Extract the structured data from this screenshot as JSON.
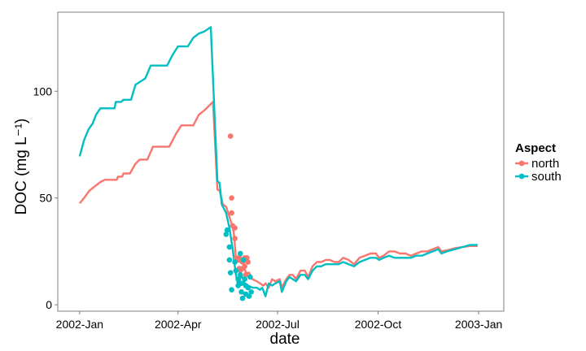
{
  "chart_data": {
    "type": "line",
    "xlabel": "date",
    "ylabel": "DOC (mg L⁻¹)",
    "x_ticks": [
      "2002-Jan",
      "2002-Apr",
      "2002-Jul",
      "2002-Oct",
      "2003-Jan"
    ],
    "x_tick_dates": [
      "2002-01-01",
      "2002-04-01",
      "2002-07-01",
      "2002-10-01",
      "2003-01-01"
    ],
    "xlim": [
      "2001-12-12",
      "2003-01-24"
    ],
    "y_ticks": [
      "0",
      "50",
      "100"
    ],
    "ylim": [
      -3,
      137
    ],
    "grid": false,
    "legend": {
      "title": "Aspect",
      "position": "right"
    },
    "series": [
      {
        "name": "north",
        "color": "#F8766D",
        "line": [
          [
            "2002-01-01",
            47.5
          ],
          [
            "2002-01-05",
            50
          ],
          [
            "2002-01-10",
            53.5
          ],
          [
            "2002-01-15",
            55.5
          ],
          [
            "2002-01-20",
            57.5
          ],
          [
            "2002-01-24",
            58.5
          ],
          [
            "2002-02-04",
            58.5
          ],
          [
            "2002-02-05",
            60
          ],
          [
            "2002-02-09",
            60
          ],
          [
            "2002-02-10",
            61.5
          ],
          [
            "2002-02-16",
            61.5
          ],
          [
            "2002-02-21",
            66
          ],
          [
            "2002-02-25",
            68
          ],
          [
            "2002-03-04",
            68
          ],
          [
            "2002-03-09",
            74
          ],
          [
            "2002-03-24",
            74
          ],
          [
            "2002-03-30",
            80
          ],
          [
            "2002-04-04",
            84
          ],
          [
            "2002-04-15",
            84
          ],
          [
            "2002-04-20",
            89
          ],
          [
            "2002-04-25",
            91
          ],
          [
            "2002-05-03",
            95
          ],
          [
            "2002-05-07",
            54
          ],
          [
            "2002-05-09",
            53.5
          ],
          [
            "2002-05-12",
            47
          ],
          [
            "2002-05-15",
            46
          ],
          [
            "2002-05-20",
            38
          ],
          [
            "2002-05-22",
            34
          ],
          [
            "2002-05-24",
            22
          ],
          [
            "2002-05-27",
            20
          ],
          [
            "2002-05-30",
            21
          ],
          [
            "2002-06-02",
            15
          ],
          [
            "2002-06-05",
            15
          ],
          [
            "2002-06-08",
            12
          ],
          [
            "2002-06-12",
            11
          ],
          [
            "2002-06-15",
            10
          ],
          [
            "2002-06-18",
            9
          ],
          [
            "2002-06-20",
            10
          ],
          [
            "2002-06-23",
            8
          ],
          [
            "2002-06-26",
            12
          ],
          [
            "2002-06-29",
            11
          ],
          [
            "2002-07-03",
            12
          ],
          [
            "2002-07-05",
            8
          ],
          [
            "2002-07-09",
            12
          ],
          [
            "2002-07-12",
            14
          ],
          [
            "2002-07-15",
            14
          ],
          [
            "2002-07-18",
            12
          ],
          [
            "2002-07-22",
            16
          ],
          [
            "2002-07-26",
            16
          ],
          [
            "2002-07-29",
            13
          ],
          [
            "2002-08-02",
            18
          ],
          [
            "2002-08-06",
            20
          ],
          [
            "2002-08-10",
            20
          ],
          [
            "2002-08-14",
            21
          ],
          [
            "2002-08-18",
            21
          ],
          [
            "2002-08-22",
            20
          ],
          [
            "2002-08-26",
            20
          ],
          [
            "2002-08-30",
            22
          ],
          [
            "2002-09-04",
            21
          ],
          [
            "2002-09-09",
            19
          ],
          [
            "2002-09-14",
            22
          ],
          [
            "2002-09-19",
            23
          ],
          [
            "2002-09-24",
            24
          ],
          [
            "2002-09-29",
            24
          ],
          [
            "2002-10-02",
            22
          ],
          [
            "2002-10-06",
            23
          ],
          [
            "2002-10-11",
            25
          ],
          [
            "2002-10-16",
            25
          ],
          [
            "2002-10-21",
            24
          ],
          [
            "2002-10-26",
            24
          ],
          [
            "2002-10-31",
            23
          ],
          [
            "2002-11-05",
            24
          ],
          [
            "2002-11-10",
            25
          ],
          [
            "2002-11-15",
            25
          ],
          [
            "2002-11-20",
            26
          ],
          [
            "2002-11-25",
            27
          ],
          [
            "2002-11-28",
            25
          ],
          [
            "2002-12-03",
            25.5
          ],
          [
            "2002-12-10",
            26.5
          ],
          [
            "2002-12-17",
            27
          ],
          [
            "2002-12-24",
            27.5
          ],
          [
            "2002-12-31",
            27.5
          ]
        ],
        "points": [
          [
            "2002-05-19",
            79
          ],
          [
            "2002-05-20",
            50
          ],
          [
            "2002-05-20",
            43
          ],
          [
            "2002-05-21",
            37
          ],
          [
            "2002-05-23",
            36
          ],
          [
            "2002-05-23",
            31
          ],
          [
            "2002-05-24",
            22
          ],
          [
            "2002-05-25",
            21
          ],
          [
            "2002-05-27",
            22
          ],
          [
            "2002-05-27",
            17
          ],
          [
            "2002-05-28",
            16
          ],
          [
            "2002-05-30",
            20
          ],
          [
            "2002-05-30",
            17
          ],
          [
            "2002-06-01",
            22
          ],
          [
            "2002-06-01",
            18
          ],
          [
            "2002-06-02",
            14
          ],
          [
            "2002-06-03",
            22
          ],
          [
            "2002-06-04",
            20
          ]
        ]
      },
      {
        "name": "south",
        "color": "#00BFC4",
        "line": [
          [
            "2002-01-01",
            69.5
          ],
          [
            "2002-01-05",
            77
          ],
          [
            "2002-01-09",
            82
          ],
          [
            "2002-01-13",
            85
          ],
          [
            "2002-01-16",
            89
          ],
          [
            "2002-01-20",
            92
          ],
          [
            "2002-02-02",
            92
          ],
          [
            "2002-02-03",
            95
          ],
          [
            "2002-02-08",
            95
          ],
          [
            "2002-02-10",
            96
          ],
          [
            "2002-02-17",
            96
          ],
          [
            "2002-02-21",
            103
          ],
          [
            "2002-02-24",
            104
          ],
          [
            "2002-03-02",
            106
          ],
          [
            "2002-03-07",
            112
          ],
          [
            "2002-03-22",
            112
          ],
          [
            "2002-03-27",
            117
          ],
          [
            "2002-04-01",
            121
          ],
          [
            "2002-04-10",
            121
          ],
          [
            "2002-04-15",
            125
          ],
          [
            "2002-04-20",
            127
          ],
          [
            "2002-04-25",
            128
          ],
          [
            "2002-05-01",
            130
          ],
          [
            "2002-05-07",
            58
          ],
          [
            "2002-05-09",
            57
          ],
          [
            "2002-05-11",
            47
          ],
          [
            "2002-05-15",
            43
          ],
          [
            "2002-05-18",
            36
          ],
          [
            "2002-05-21",
            26
          ],
          [
            "2002-05-24",
            14
          ],
          [
            "2002-05-26",
            9
          ],
          [
            "2002-05-29",
            14
          ],
          [
            "2002-06-01",
            10
          ],
          [
            "2002-06-04",
            9
          ],
          [
            "2002-06-08",
            8
          ],
          [
            "2002-06-12",
            8
          ],
          [
            "2002-06-15",
            7
          ],
          [
            "2002-06-17",
            8
          ],
          [
            "2002-06-20",
            4
          ],
          [
            "2002-06-23",
            10
          ],
          [
            "2002-06-26",
            9
          ],
          [
            "2002-06-29",
            10
          ],
          [
            "2002-07-03",
            11
          ],
          [
            "2002-07-05",
            6
          ],
          [
            "2002-07-09",
            11
          ],
          [
            "2002-07-12",
            13
          ],
          [
            "2002-07-15",
            12
          ],
          [
            "2002-07-18",
            11
          ],
          [
            "2002-07-22",
            14
          ],
          [
            "2002-07-26",
            14
          ],
          [
            "2002-07-29",
            12
          ],
          [
            "2002-08-02",
            16
          ],
          [
            "2002-08-06",
            18
          ],
          [
            "2002-08-10",
            18
          ],
          [
            "2002-08-14",
            19
          ],
          [
            "2002-08-18",
            19
          ],
          [
            "2002-08-22",
            19
          ],
          [
            "2002-08-26",
            19
          ],
          [
            "2002-08-30",
            20
          ],
          [
            "2002-09-04",
            19
          ],
          [
            "2002-09-09",
            18
          ],
          [
            "2002-09-14",
            20
          ],
          [
            "2002-09-19",
            21
          ],
          [
            "2002-09-24",
            22
          ],
          [
            "2002-09-29",
            22
          ],
          [
            "2002-10-02",
            21
          ],
          [
            "2002-10-06",
            22
          ],
          [
            "2002-10-11",
            23
          ],
          [
            "2002-10-16",
            22
          ],
          [
            "2002-10-21",
            22
          ],
          [
            "2002-10-26",
            22
          ],
          [
            "2002-10-31",
            22
          ],
          [
            "2002-11-05",
            23
          ],
          [
            "2002-11-10",
            23
          ],
          [
            "2002-11-15",
            24
          ],
          [
            "2002-11-20",
            25
          ],
          [
            "2002-11-25",
            26
          ],
          [
            "2002-11-28",
            24
          ],
          [
            "2002-12-03",
            25
          ],
          [
            "2002-12-10",
            26
          ],
          [
            "2002-12-17",
            27
          ],
          [
            "2002-12-24",
            28
          ],
          [
            "2002-12-31",
            28
          ]
        ],
        "points": [
          [
            "2002-05-15",
            33
          ],
          [
            "2002-05-16",
            35
          ],
          [
            "2002-05-18",
            27
          ],
          [
            "2002-05-18",
            21
          ],
          [
            "2002-05-19",
            15
          ],
          [
            "2002-05-20",
            7
          ],
          [
            "2002-05-23",
            20
          ],
          [
            "2002-05-24",
            16
          ],
          [
            "2002-05-26",
            12
          ],
          [
            "2002-05-26",
            9
          ],
          [
            "2002-05-28",
            24
          ],
          [
            "2002-05-28",
            14
          ],
          [
            "2002-05-29",
            10
          ],
          [
            "2002-05-29",
            6
          ],
          [
            "2002-05-30",
            3
          ],
          [
            "2002-05-31",
            21
          ],
          [
            "2002-06-01",
            12
          ],
          [
            "2002-06-02",
            9
          ],
          [
            "2002-06-02",
            5
          ],
          [
            "2002-06-04",
            8
          ],
          [
            "2002-06-05",
            4
          ],
          [
            "2002-06-06",
            13
          ],
          [
            "2002-06-07",
            6
          ]
        ]
      }
    ]
  }
}
